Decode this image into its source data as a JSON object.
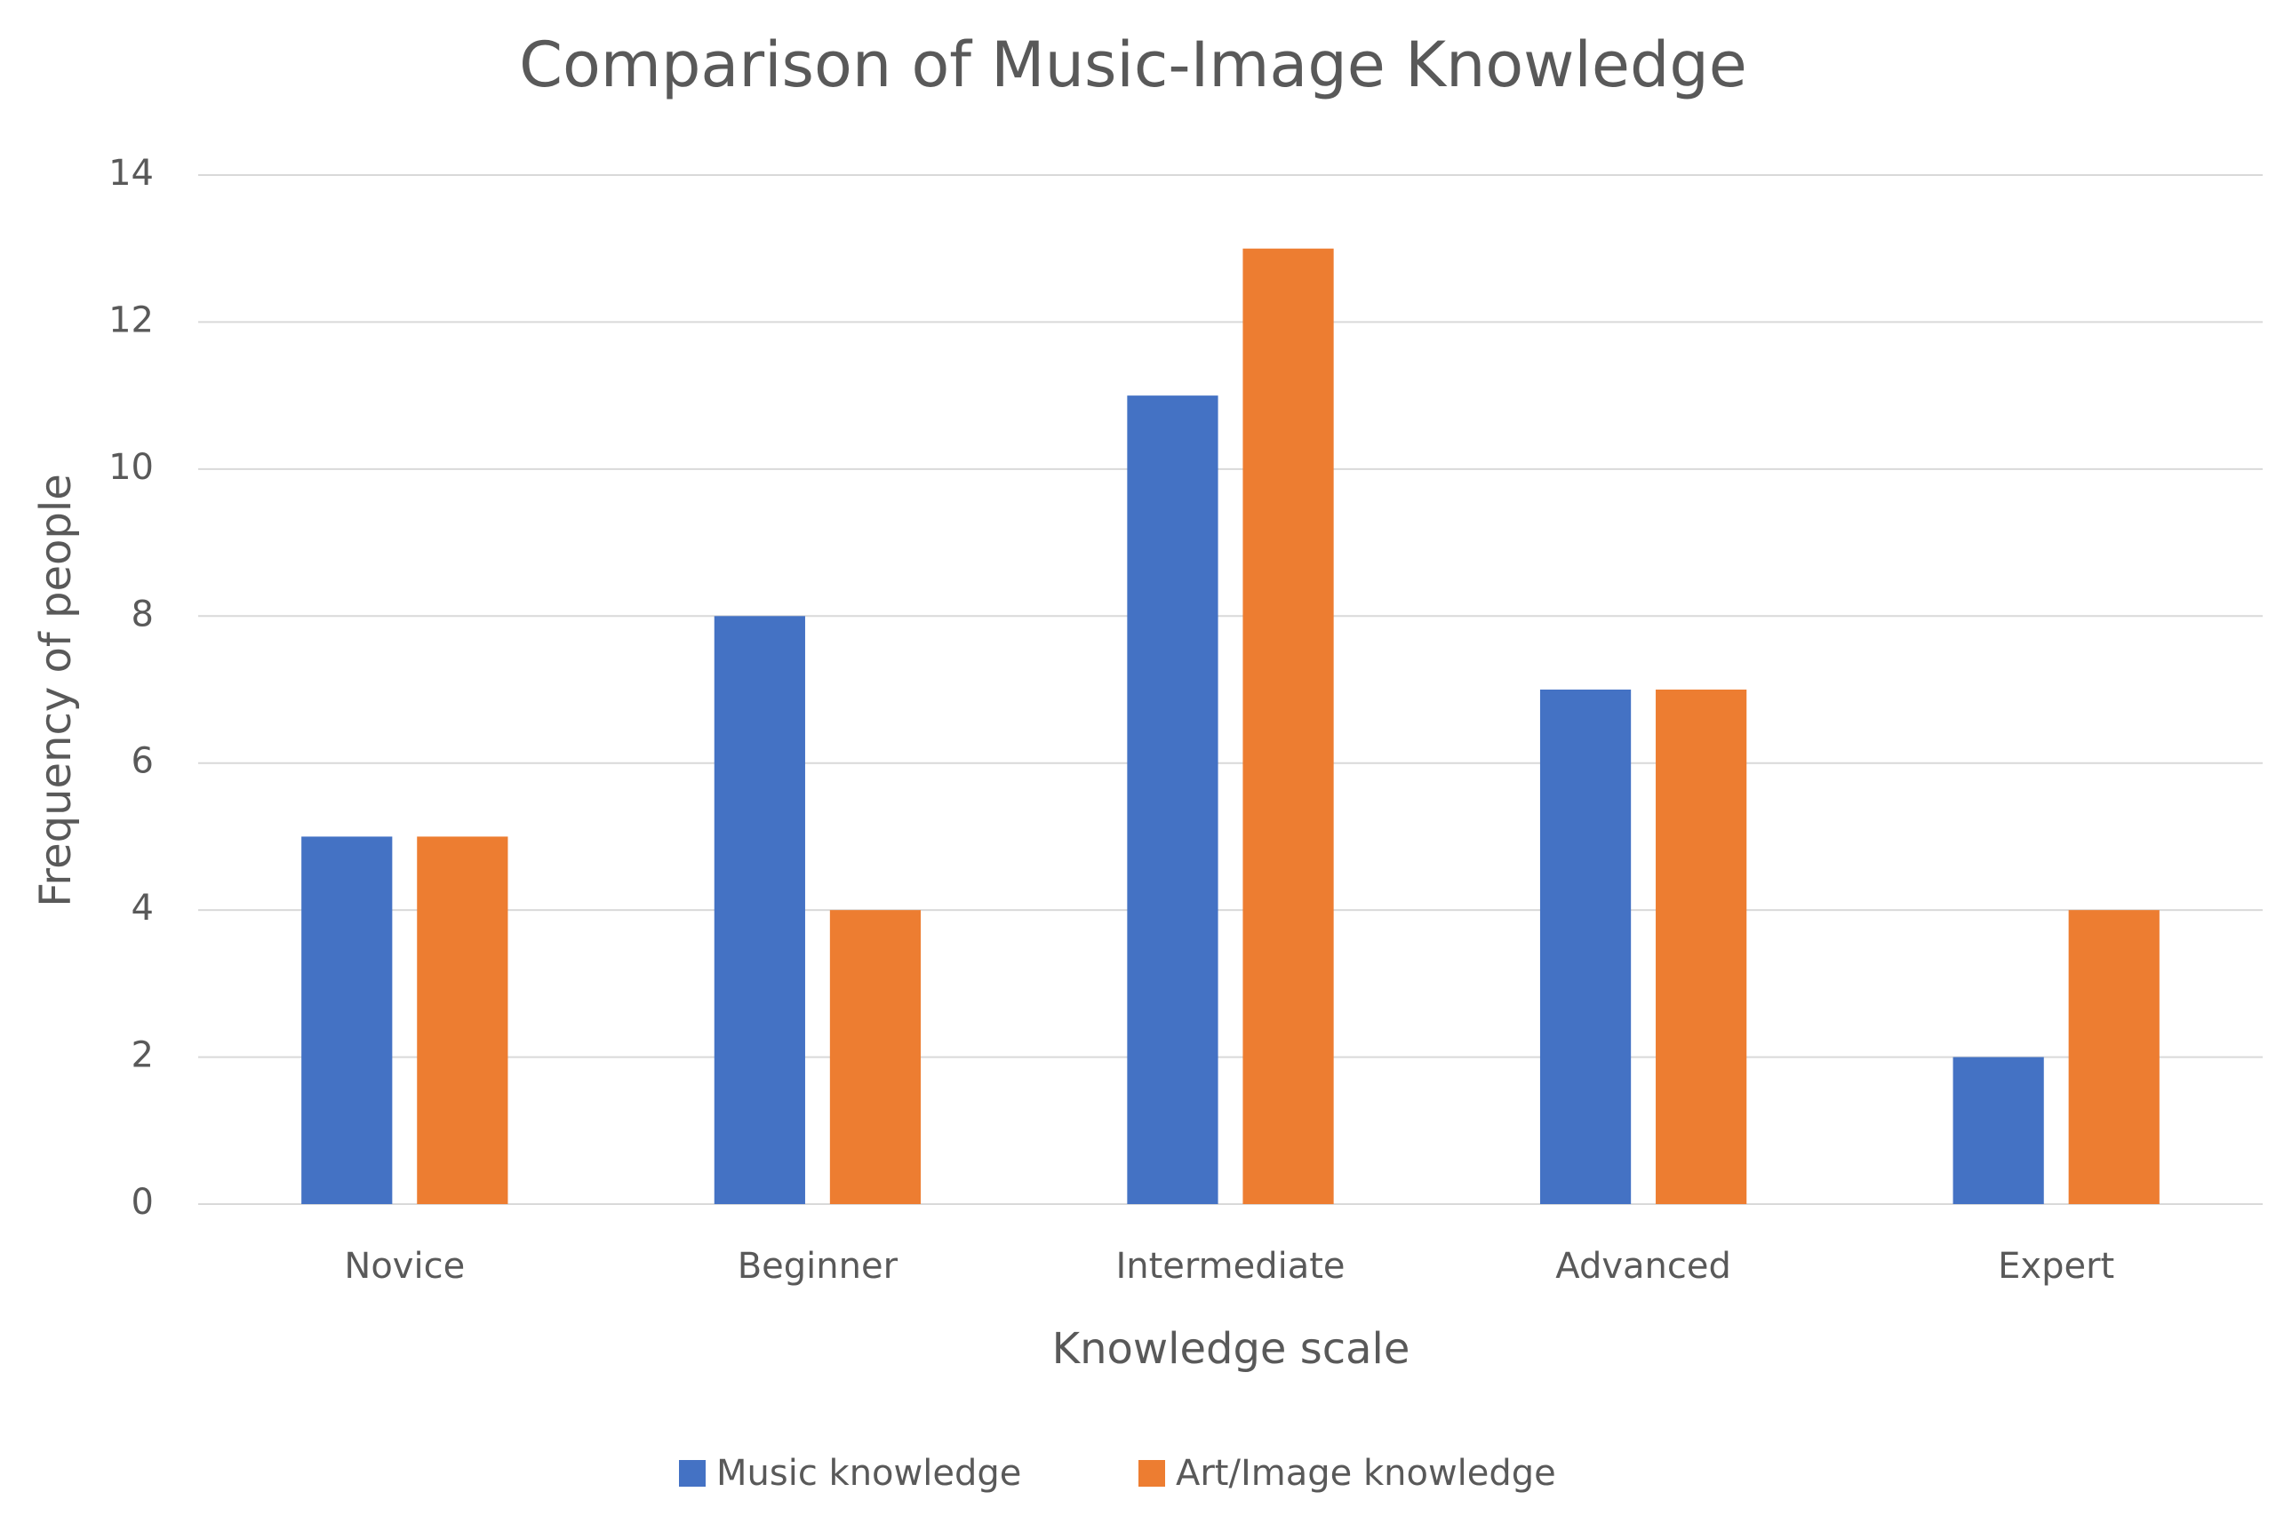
{
  "chart_data": {
    "type": "bar",
    "title": "Comparison of Music-Image Knowledge",
    "x_label": "Knowledge scale",
    "y_label": "Frequency of people",
    "categories": [
      "Novice",
      "Beginner",
      "Intermediate",
      "Advanced",
      "Expert"
    ],
    "series": [
      {
        "name": "Music knowledge",
        "color": "#4472c4",
        "values": [
          5,
          8,
          11,
          7,
          2
        ]
      },
      {
        "name": "Art/Image knowledge",
        "color": "#ed7d31",
        "values": [
          5,
          4,
          13,
          7,
          4
        ]
      }
    ],
    "ylim": [
      0,
      14
    ],
    "yticks": [
      0,
      2,
      4,
      6,
      8,
      10,
      12,
      14
    ],
    "grid": true,
    "legend": "bottom"
  }
}
